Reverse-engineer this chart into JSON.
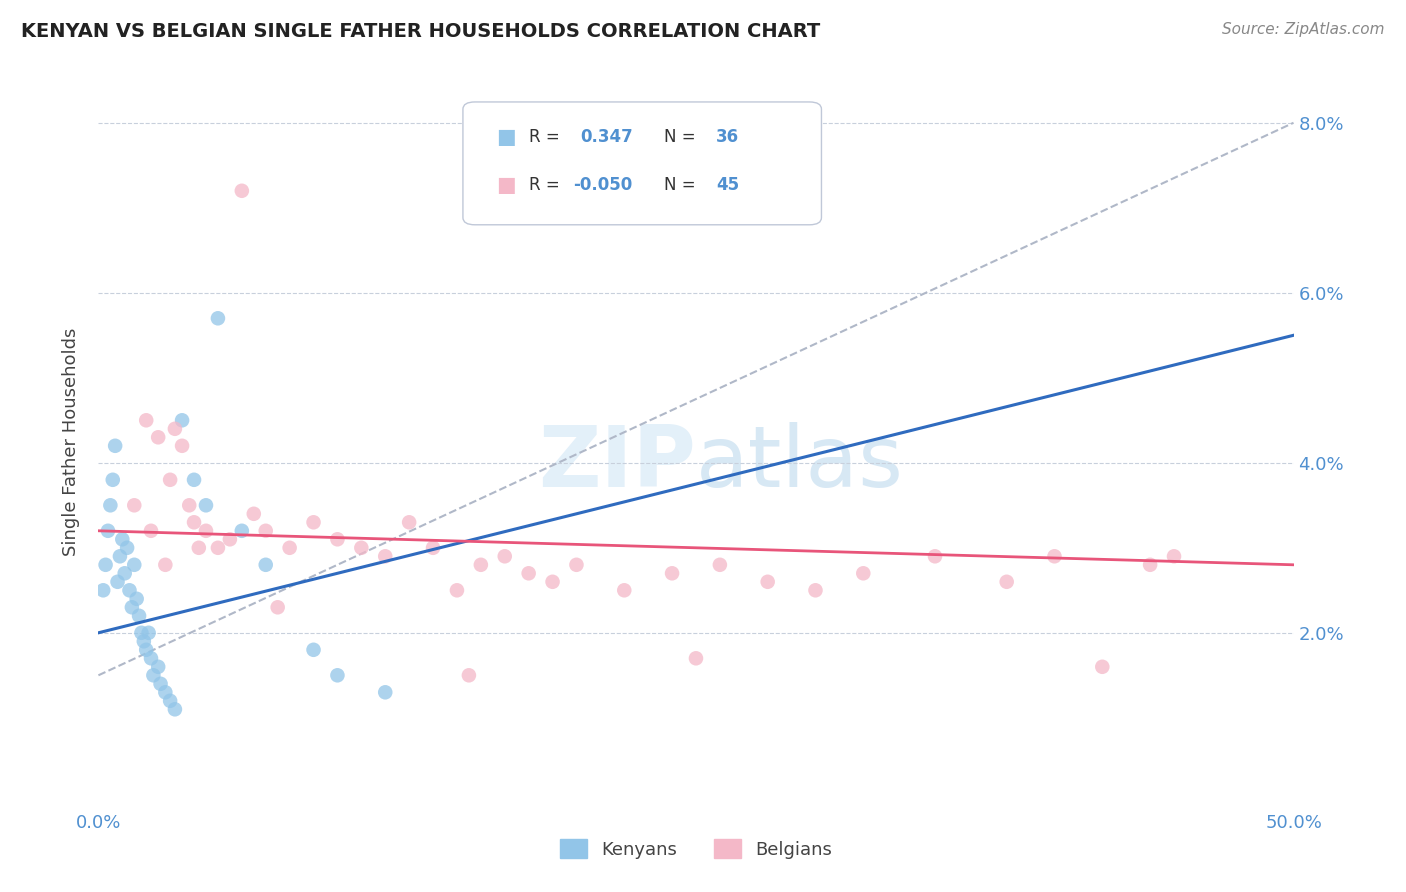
{
  "title": "KENYAN VS BELGIAN SINGLE FATHER HOUSEHOLDS CORRELATION CHART",
  "source": "Source: ZipAtlas.com",
  "ylabel": "Single Father Households",
  "xlim": [
    0.0,
    50.0
  ],
  "ylim": [
    0.0,
    8.5
  ],
  "yticks": [
    2.0,
    4.0,
    6.0,
    8.0
  ],
  "ytick_labels": [
    "2.0%",
    "4.0%",
    "6.0%",
    "8.0%"
  ],
  "kenyan_R": 0.347,
  "kenyan_N": 36,
  "belgian_R": -0.05,
  "belgian_N": 45,
  "kenyan_color": "#92c5e8",
  "belgian_color": "#f4b8c8",
  "kenyan_line_color": "#2f6bbf",
  "belgian_line_color": "#e8557a",
  "trend_line_color": "#b0b8c8",
  "legend_kenyan_label": "Kenyans",
  "legend_belgian_label": "Belgians",
  "kenyan_x": [
    0.2,
    0.3,
    0.4,
    0.5,
    0.6,
    0.7,
    0.8,
    0.9,
    1.0,
    1.1,
    1.2,
    1.3,
    1.4,
    1.5,
    1.6,
    1.7,
    1.8,
    1.9,
    2.0,
    2.1,
    2.2,
    2.3,
    2.5,
    2.6,
    2.8,
    3.0,
    3.2,
    3.5,
    4.0,
    4.5,
    5.0,
    6.0,
    7.0,
    9.0,
    10.0,
    12.0
  ],
  "kenyan_y": [
    2.5,
    2.8,
    3.2,
    3.5,
    3.8,
    4.2,
    2.6,
    2.9,
    3.1,
    2.7,
    3.0,
    2.5,
    2.3,
    2.8,
    2.4,
    2.2,
    2.0,
    1.9,
    1.8,
    2.0,
    1.7,
    1.5,
    1.6,
    1.4,
    1.3,
    1.2,
    1.1,
    4.5,
    3.8,
    3.5,
    5.7,
    3.2,
    2.8,
    1.8,
    1.5,
    1.3
  ],
  "belgian_x": [
    1.5,
    2.0,
    2.5,
    3.0,
    3.2,
    3.5,
    3.8,
    4.0,
    4.5,
    5.0,
    5.5,
    6.0,
    6.5,
    7.0,
    8.0,
    9.0,
    10.0,
    11.0,
    12.0,
    13.0,
    14.0,
    15.0,
    16.0,
    17.0,
    18.0,
    19.0,
    20.0,
    22.0,
    24.0,
    26.0,
    28.0,
    30.0,
    32.0,
    35.0,
    38.0,
    40.0,
    42.0,
    44.0,
    2.2,
    2.8,
    4.2,
    7.5,
    15.5,
    25.0,
    45.0
  ],
  "belgian_y": [
    3.5,
    4.5,
    4.3,
    3.8,
    4.4,
    4.2,
    3.5,
    3.3,
    3.2,
    3.0,
    3.1,
    7.2,
    3.4,
    3.2,
    3.0,
    3.3,
    3.1,
    3.0,
    2.9,
    3.3,
    3.0,
    2.5,
    2.8,
    2.9,
    2.7,
    2.6,
    2.8,
    2.5,
    2.7,
    2.8,
    2.6,
    2.5,
    2.7,
    2.9,
    2.6,
    2.9,
    1.6,
    2.8,
    3.2,
    2.8,
    3.0,
    2.3,
    1.5,
    1.7,
    2.9
  ]
}
